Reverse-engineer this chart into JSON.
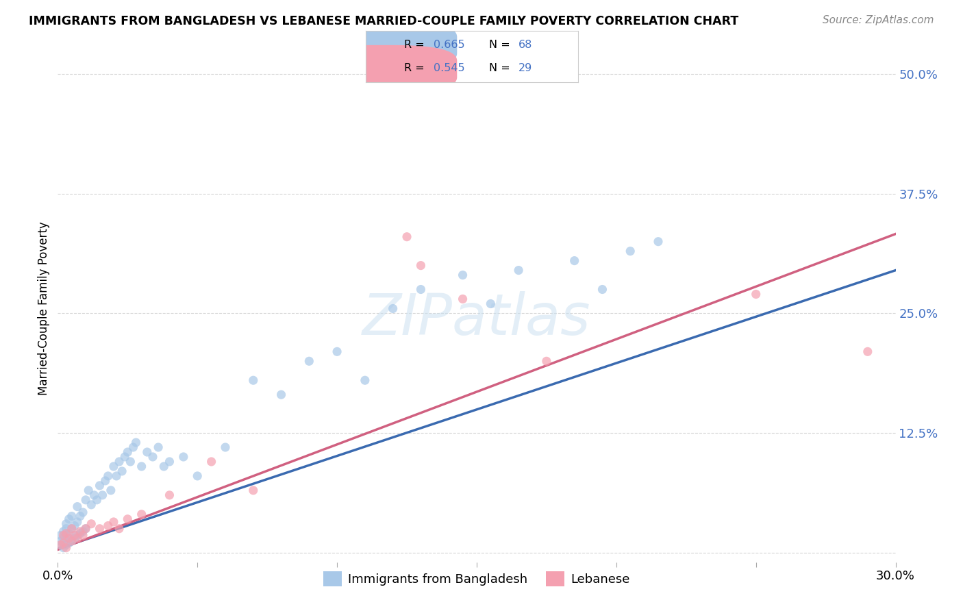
{
  "title": "IMMIGRANTS FROM BANGLADESH VS LEBANESE MARRIED-COUPLE FAMILY POVERTY CORRELATION CHART",
  "source": "Source: ZipAtlas.com",
  "ylabel": "Married-Couple Family Poverty",
  "xlim": [
    0.0,
    0.3
  ],
  "ylim": [
    -0.01,
    0.52
  ],
  "ytick_vals": [
    0.0,
    0.125,
    0.25,
    0.375,
    0.5
  ],
  "ytick_labels": [
    "",
    "12.5%",
    "25.0%",
    "37.5%",
    "50.0%"
  ],
  "xtick_vals": [
    0.0,
    0.05,
    0.1,
    0.15,
    0.2,
    0.25,
    0.3
  ],
  "xtick_labels": [
    "0.0%",
    "",
    "",
    "",
    "",
    "",
    "30.0%"
  ],
  "bg_color": "#ffffff",
  "grid_color": "#cccccc",
  "watermark_text": "ZIPatlas",
  "legend_R1": "R = 0.665",
  "legend_N1": "N = 68",
  "legend_R2": "R = 0.545",
  "legend_N2": "N = 29",
  "legend_label1": "Immigrants from Bangladesh",
  "legend_label2": "Lebanese",
  "color_blue": "#a8c8e8",
  "color_pink": "#f4a0b0",
  "line_color_blue": "#3a6ab0",
  "line_color_pink": "#d06080",
  "tick_color_blue": "#4472c4",
  "scatter_alpha": 0.7,
  "scatter_size": 90,
  "bd_x": [
    0.001,
    0.001,
    0.001,
    0.002,
    0.002,
    0.002,
    0.003,
    0.003,
    0.003,
    0.003,
    0.004,
    0.004,
    0.004,
    0.005,
    0.005,
    0.005,
    0.006,
    0.006,
    0.007,
    0.007,
    0.007,
    0.008,
    0.008,
    0.009,
    0.009,
    0.01,
    0.01,
    0.011,
    0.012,
    0.013,
    0.014,
    0.015,
    0.016,
    0.017,
    0.018,
    0.019,
    0.02,
    0.021,
    0.022,
    0.023,
    0.024,
    0.025,
    0.026,
    0.027,
    0.028,
    0.03,
    0.032,
    0.034,
    0.036,
    0.038,
    0.04,
    0.045,
    0.05,
    0.06,
    0.07,
    0.08,
    0.09,
    0.1,
    0.11,
    0.12,
    0.13,
    0.145,
    0.155,
    0.165,
    0.185,
    0.195,
    0.205,
    0.215
  ],
  "bd_y": [
    0.008,
    0.012,
    0.018,
    0.005,
    0.015,
    0.022,
    0.008,
    0.018,
    0.025,
    0.03,
    0.01,
    0.02,
    0.035,
    0.012,
    0.025,
    0.038,
    0.015,
    0.028,
    0.018,
    0.032,
    0.048,
    0.02,
    0.038,
    0.022,
    0.042,
    0.025,
    0.055,
    0.065,
    0.05,
    0.06,
    0.055,
    0.07,
    0.06,
    0.075,
    0.08,
    0.065,
    0.09,
    0.08,
    0.095,
    0.085,
    0.1,
    0.105,
    0.095,
    0.11,
    0.115,
    0.09,
    0.105,
    0.1,
    0.11,
    0.09,
    0.095,
    0.1,
    0.08,
    0.11,
    0.18,
    0.165,
    0.2,
    0.21,
    0.18,
    0.255,
    0.275,
    0.29,
    0.26,
    0.295,
    0.305,
    0.275,
    0.315,
    0.325
  ],
  "lb_x": [
    0.001,
    0.002,
    0.002,
    0.003,
    0.003,
    0.004,
    0.005,
    0.005,
    0.006,
    0.007,
    0.008,
    0.009,
    0.01,
    0.012,
    0.015,
    0.018,
    0.02,
    0.022,
    0.025,
    0.03,
    0.04,
    0.055,
    0.07,
    0.125,
    0.13,
    0.145,
    0.175,
    0.25,
    0.29
  ],
  "lb_y": [
    0.008,
    0.01,
    0.018,
    0.005,
    0.02,
    0.015,
    0.012,
    0.025,
    0.018,
    0.015,
    0.022,
    0.018,
    0.025,
    0.03,
    0.025,
    0.028,
    0.032,
    0.025,
    0.035,
    0.04,
    0.06,
    0.095,
    0.065,
    0.33,
    0.3,
    0.265,
    0.2,
    0.27,
    0.21
  ]
}
